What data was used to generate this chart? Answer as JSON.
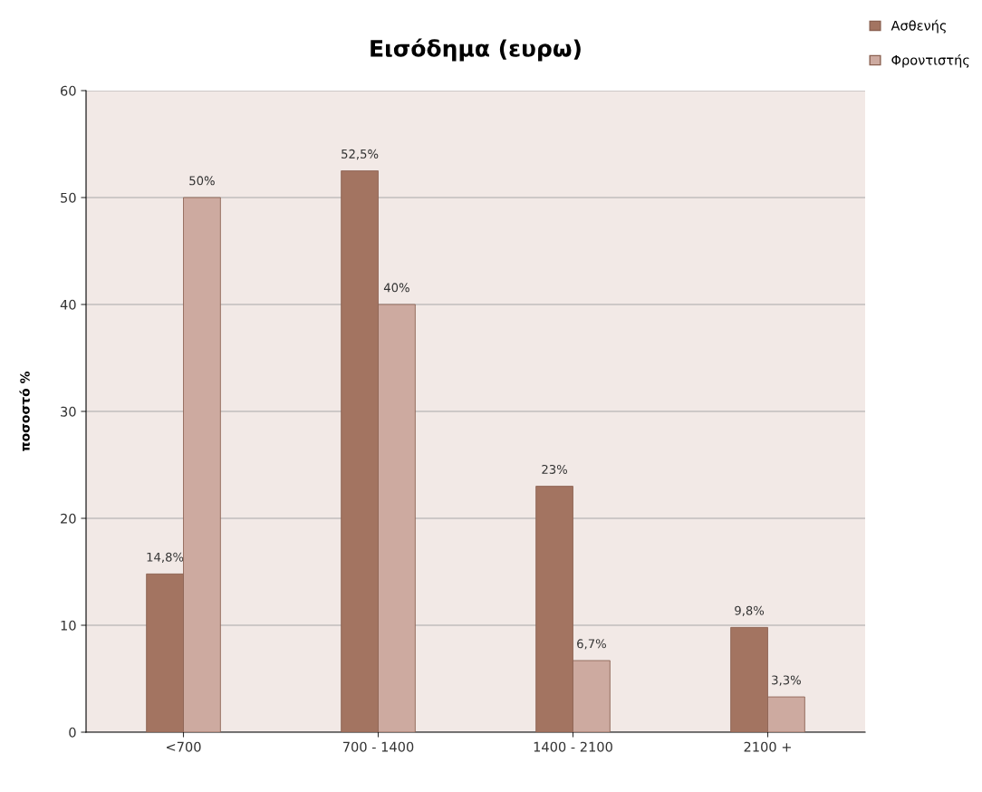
{
  "chart_data": {
    "type": "bar",
    "title": "Εισόδημα (ευρω)",
    "ylabel": "ποσοστό %",
    "categories": [
      "<700",
      "700 - 1400",
      "1400 - 2100",
      "2100 +"
    ],
    "series": [
      {
        "name": "Ασθενής",
        "color": "#a37461",
        "values": [
          14.8,
          52.5,
          23,
          9.8
        ],
        "value_labels": [
          "14,8%",
          "52,5%",
          "23%",
          "9,8%"
        ]
      },
      {
        "name": "Φροντιστής",
        "color": "#cdaaa0",
        "values": [
          50,
          40,
          6.7,
          3.3
        ],
        "value_labels": [
          "50%",
          "40%",
          "6,7%",
          "3,3%"
        ]
      }
    ],
    "ylim": [
      0,
      60
    ],
    "yticks": [
      0,
      10,
      20,
      30,
      40,
      50,
      60
    ],
    "grid": "y",
    "legend": "top right"
  }
}
